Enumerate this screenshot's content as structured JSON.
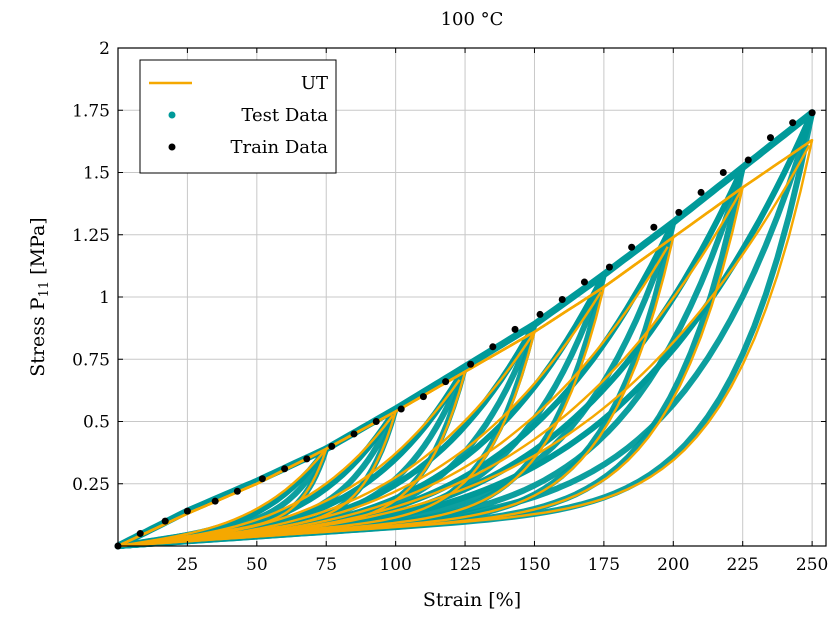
{
  "chart_data": {
    "type": "line",
    "title": "100 °C",
    "xlabel": "Strain [%]",
    "ylabel": "Stress P11 [MPa]",
    "xlim": [
      0,
      255
    ],
    "ylim": [
      0,
      2
    ],
    "xticks": [
      25,
      50,
      75,
      100,
      125,
      150,
      175,
      200,
      225,
      250
    ],
    "xtick_labels": [
      "25",
      "50",
      "75",
      "100",
      "125",
      "150",
      "175",
      "200",
      "225",
      "250"
    ],
    "yticks": [
      0.25,
      0.5,
      0.75,
      1,
      1.25,
      1.5,
      1.75,
      2
    ],
    "ytick_labels": [
      "0.25",
      "0.5",
      "0.75",
      "1",
      "1.25",
      "1.5",
      "1.75",
      "2"
    ],
    "grid": true,
    "legend_position": "top-left",
    "legend": [
      "UT",
      "Test Data",
      "Train Data"
    ],
    "colors": {
      "ut": "#f5a800",
      "test": "#009a9a",
      "train": "#000000"
    },
    "peak_strains": [
      75,
      100,
      125,
      150,
      175,
      200,
      225,
      250
    ],
    "series": [
      {
        "name": "Train Data",
        "x": [
          0,
          8,
          17,
          25,
          35,
          43,
          52,
          60,
          68,
          77,
          85,
          93,
          102,
          110,
          118,
          127,
          135,
          143,
          152,
          160,
          168,
          177,
          185,
          193,
          202,
          210,
          218,
          227,
          235,
          243,
          250
        ],
        "y": [
          0,
          0.05,
          0.1,
          0.14,
          0.18,
          0.22,
          0.27,
          0.31,
          0.35,
          0.4,
          0.45,
          0.5,
          0.55,
          0.6,
          0.66,
          0.73,
          0.8,
          0.87,
          0.93,
          0.99,
          1.06,
          1.12,
          1.2,
          1.28,
          1.34,
          1.42,
          1.5,
          1.55,
          1.64,
          1.7,
          1.74
        ]
      },
      {
        "name": "Test Data",
        "loading_envelope_x": [
          0,
          25,
          50,
          75,
          100,
          125,
          150,
          175,
          200,
          225,
          250
        ],
        "loading_envelope_y": [
          0,
          0.14,
          0.26,
          0.39,
          0.55,
          0.72,
          0.89,
          1.09,
          1.3,
          1.52,
          1.74
        ],
        "unloading_end_y": [
          0.13,
          0.14,
          0.15,
          0.16,
          0.17,
          0.18,
          0.19,
          0.21
        ]
      },
      {
        "name": "UT",
        "loading_envelope_x": [
          0,
          25,
          50,
          75,
          100,
          125,
          150,
          175,
          200,
          225,
          250
        ],
        "loading_envelope_y": [
          0,
          0.13,
          0.25,
          0.39,
          0.54,
          0.7,
          0.86,
          1.04,
          1.24,
          1.44,
          1.63
        ],
        "unloading_end_y": [
          0.13,
          0.14,
          0.15,
          0.16,
          0.17,
          0.18,
          0.19,
          0.21
        ]
      }
    ]
  }
}
